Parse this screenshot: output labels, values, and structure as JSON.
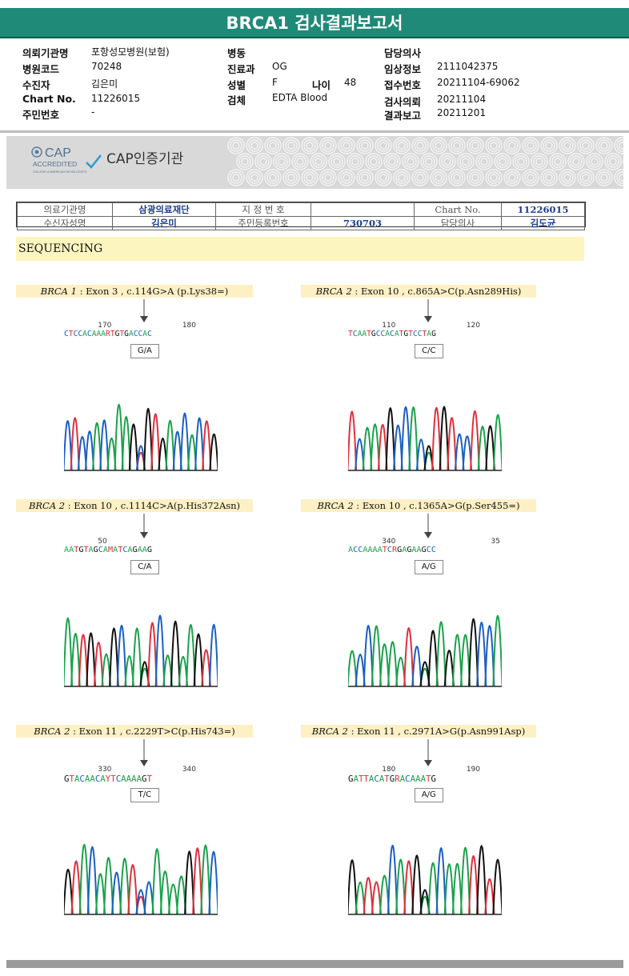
{
  "report": {
    "title": "BRCA1 검사결과보고서"
  },
  "patient_info": {
    "left": [
      {
        "label": "의뢰기관명",
        "value": "포항성모병원(보험)"
      },
      {
        "label": "병원코드",
        "value": "70248"
      },
      {
        "label": "수진자",
        "value": "김은미"
      },
      {
        "label": "Chart No.",
        "value": "11226015"
      },
      {
        "label": "주민번호",
        "value": "-"
      }
    ],
    "middle": [
      {
        "label": "병동",
        "value": ""
      },
      {
        "label": "진료과",
        "value": "OG"
      },
      {
        "label": "성별",
        "value": "F"
      },
      {
        "label": "검체",
        "value": "EDTA Blood"
      }
    ],
    "age_label": "나이",
    "age_value": "48",
    "right": [
      {
        "label": "담당의사",
        "value": ""
      },
      {
        "label": "임상정보",
        "value": "2111042375"
      },
      {
        "label": "접수번호",
        "value": "20211104-69062"
      },
      {
        "label": "검사의뢰",
        "value": "20211104"
      },
      {
        "label": "결과보고",
        "value": "20211201"
      }
    ]
  },
  "banner": {
    "cap_logo_title": "CAP",
    "cap_logo_sub": "ACCREDITED",
    "cap_logo_small": "COLLEGE of AMERICAN PATHOLOGISTS",
    "cap_label": "CAP인증기관"
  },
  "slip": {
    "r1": [
      "의료기관명",
      "삼광의료재단",
      "지 정 번 호",
      "",
      "Chart No.",
      "11226015"
    ],
    "r2": [
      "수신자성명",
      "김은미",
      "주민등록번호",
      "730703",
      "담당의사",
      "김도균"
    ]
  },
  "section_title": "SEQUENCING",
  "panels": [
    {
      "gene": "BRCA 1",
      "desc": " : Exon 3 , c.114G>A (p.Lys38=)",
      "n1": "170",
      "n2": "180",
      "seq": "CTCCACAAARTGTGACCAC",
      "call": "G/A",
      "bases": "CTCCACAAAGTGTGACCACTG"
    },
    {
      "gene": "BRCA 2",
      "desc": " : Exon 10 , c.865A>C(p.Asn289His)",
      "n1": "110",
      "n2": "120",
      "seq": "TCAATGCCACATGTCCTAG",
      "call": "C/C",
      "bases": "TCAATGCCACATGTCCTAGA"
    },
    {
      "gene": "BRCA 2",
      "desc": " : Exon 10 , c.1114C>A(p.His372Asn)",
      "n1": "50",
      "n2": "",
      "seq": "AATGTAGCAMATCAGAAG",
      "call": "C/A",
      "bases": "AATGTAGCAAATCAGAAGTC"
    },
    {
      "gene": "BRCA 2",
      "desc": " : Exon 10 , c.1365A>G(p.Ser455=)",
      "n1": "340",
      "n2": "35",
      "seq": "ACCAAAATCRGAGAAGCC",
      "call": "A/G",
      "bases": "ACCAAAATCAGAGAAGCCA"
    },
    {
      "gene": "BRCA 2",
      "desc": " : Exon 11 , c.2229T>C(p.His743=)",
      "n1": "330",
      "n2": "340",
      "seq": "GTACAACAYTCAAAAGT",
      "call": "T/C",
      "bases": "GTACAACATTCAAAAGTAC"
    },
    {
      "gene": "BRCA 2",
      "desc": " : Exon 11 , c.2971A>G(p.Asn991Asp)",
      "n1": "180",
      "n2": "190",
      "seq": "GATTACATGRACAAATG",
      "call": "A/G",
      "bases": "GATTACATGAACAAATGTG"
    }
  ],
  "colors": {
    "A": "#1aa24a",
    "C": "#1a5fc2",
    "G": "#111111",
    "T": "#e0303a",
    "accent": "#1f8a78"
  }
}
